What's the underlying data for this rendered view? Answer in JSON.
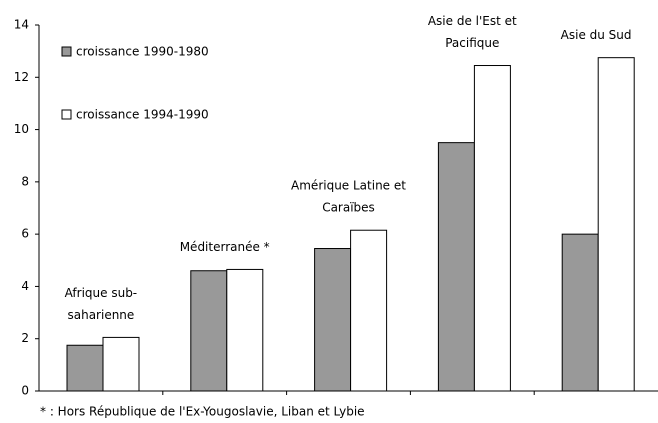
{
  "chart_data": {
    "type": "bar",
    "categories": [
      [
        "Afrique sub-",
        "saharienne"
      ],
      [
        "Méditerranée *"
      ],
      [
        "Amérique Latine et",
        "Caraïbes"
      ],
      [
        "Asie de l'Est et",
        "Pacifique"
      ],
      [
        "Asie du Sud"
      ]
    ],
    "series": [
      {
        "name": "croissance 1990-1980",
        "color": "#999999",
        "values": [
          1.75,
          4.6,
          5.45,
          9.5,
          6.0
        ]
      },
      {
        "name": "croissance 1994-1990",
        "color": "#ffffff",
        "values": [
          2.05,
          4.65,
          6.15,
          12.45,
          12.75
        ]
      }
    ],
    "ylim": [
      0,
      14
    ],
    "yticks": [
      0,
      2,
      4,
      6,
      8,
      10,
      12,
      14
    ],
    "legend": "upper left",
    "footnote": "* : Hors République de l'Ex-Yougoslavie, Liban et Lybie"
  }
}
